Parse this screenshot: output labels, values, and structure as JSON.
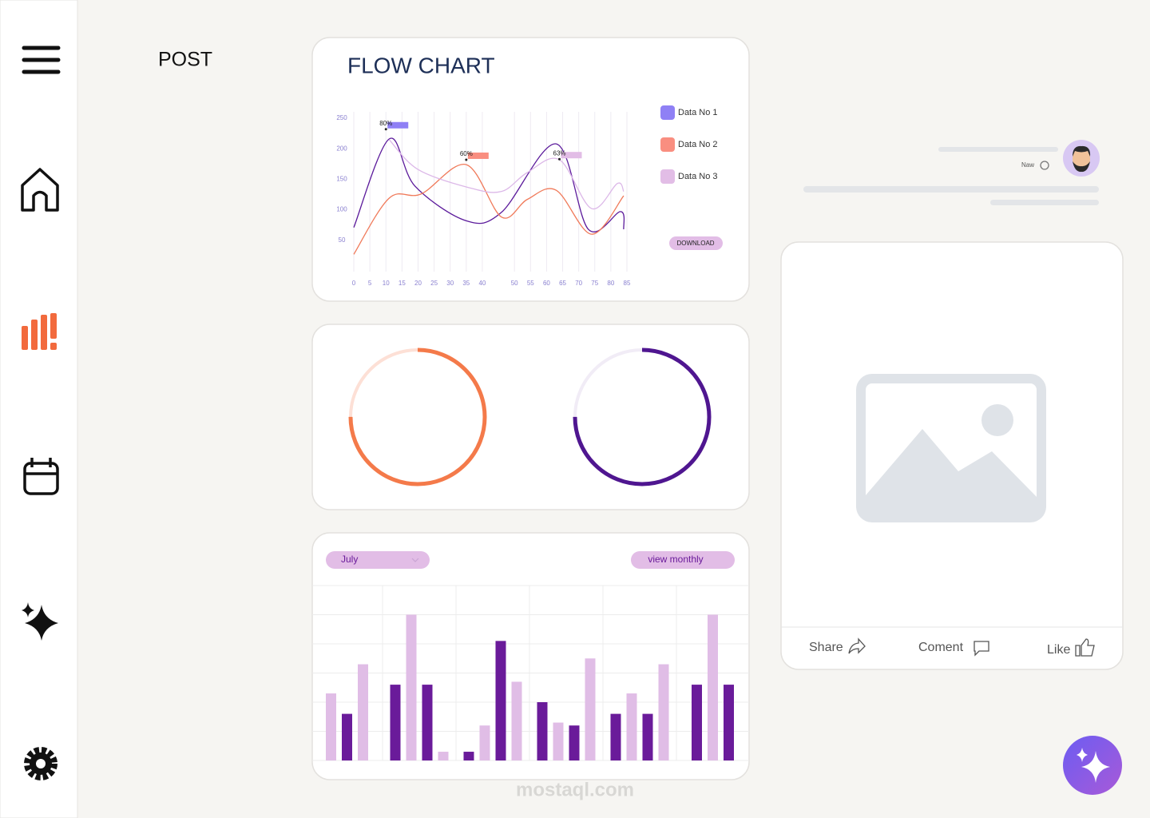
{
  "header": {
    "title": "POST"
  },
  "chart_data": [
    {
      "type": "line",
      "title": "FLOW CHART",
      "xlim": [
        0,
        85
      ],
      "xticks": [
        0,
        5,
        10,
        15,
        20,
        25,
        30,
        35,
        40,
        50,
        55,
        60,
        65,
        70,
        75,
        80,
        85
      ],
      "ylim": [
        0,
        250
      ],
      "yticks": [
        50,
        100,
        150,
        200,
        250
      ],
      "grid": true,
      "series": [
        {
          "name": "Data No 1",
          "color": "#5b1a9b",
          "legend_color": "#8f80f5",
          "x": [
            0,
            11,
            19,
            35,
            46,
            63,
            73,
            83,
            84
          ],
          "values": [
            71,
            216,
            139,
            82,
            96,
            208,
            68,
            97,
            68
          ]
        },
        {
          "name": "Data No 2",
          "color": "#f07a5a",
          "legend_color": "#f98e80",
          "x": [
            0,
            11,
            21,
            35,
            46,
            54,
            63,
            74,
            84
          ],
          "values": [
            27,
            119,
            126,
            174,
            88,
            117,
            132,
            60,
            123
          ]
        },
        {
          "name": "Data No 3",
          "color": "#dcb8e8",
          "legend_color": "#e2bde6",
          "x": [
            11,
            20,
            36,
            46,
            54,
            64,
            74,
            82,
            84
          ],
          "values": [
            215,
            166,
            136,
            130,
            161,
            182,
            102,
            143,
            130
          ]
        }
      ],
      "annotations": [
        {
          "text": "80%",
          "x": 10,
          "y": 232,
          "series": 0
        },
        {
          "text": "60%",
          "x": 35,
          "y": 182,
          "series": 1
        },
        {
          "text": "63%",
          "x": 64,
          "y": 183,
          "series": 2
        }
      ]
    },
    {
      "type": "donut",
      "value": 75,
      "range": [
        0,
        100
      ],
      "color": "#f47a4a",
      "track_color": "#fde0d6"
    },
    {
      "type": "donut",
      "value": 75,
      "range": [
        0,
        100
      ],
      "color": "#4f1690",
      "track_color": "#f1ecf6"
    },
    {
      "type": "bar",
      "ylim": [
        0,
        6
      ],
      "yticks": [
        0,
        1,
        2,
        3,
        4,
        5,
        6
      ],
      "grid": true,
      "groups": [
        {
          "values": [
            2.3,
            1.6,
            3.3
          ],
          "colors": [
            "#e0bde6",
            "#6a1b9a",
            "#e0bde6"
          ]
        },
        {
          "values": [
            2.6,
            5.0,
            2.6,
            0.3
          ],
          "colors": [
            "#6a1b9a",
            "#e0bde6",
            "#6a1b9a",
            "#e0bde6"
          ]
        },
        {
          "values": [
            0.3,
            1.2,
            4.1,
            2.7
          ],
          "colors": [
            "#6a1b9a",
            "#e0bde6",
            "#6a1b9a",
            "#e0bde6"
          ]
        },
        {
          "values": [
            2.0,
            1.3,
            1.2,
            3.5
          ],
          "colors": [
            "#6a1b9a",
            "#e0bde6",
            "#6a1b9a",
            "#e0bde6"
          ]
        },
        {
          "values": [
            1.6,
            2.3,
            1.6,
            3.3
          ],
          "colors": [
            "#6a1b9a",
            "#e0bde6",
            "#6a1b9a",
            "#e0bde6"
          ]
        },
        {
          "values": [
            2.6,
            5.0,
            2.6
          ],
          "colors": [
            "#6a1b9a",
            "#e0bde6",
            "#6a1b9a"
          ]
        }
      ]
    }
  ],
  "controls": {
    "download": "DOWNLOAD",
    "month": "July",
    "view": "view monthly"
  },
  "post": {
    "time": "Naw",
    "actions": [
      "Share",
      "Coment",
      "Like"
    ]
  },
  "watermark": "mostaql.com"
}
